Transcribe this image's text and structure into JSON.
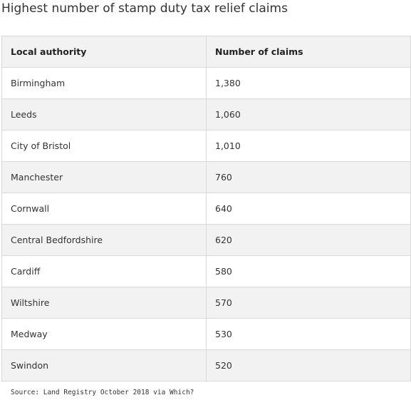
{
  "title": "Highest number of stamp duty tax relief claims",
  "table": {
    "headers": [
      "Local authority",
      "Number of claims"
    ],
    "rows": [
      {
        "authority": "Birmingham",
        "claims": "1,380"
      },
      {
        "authority": "Leeds",
        "claims": "1,060"
      },
      {
        "authority": "City of Bristol",
        "claims": "1,010"
      },
      {
        "authority": "Manchester",
        "claims": "760"
      },
      {
        "authority": "Cornwall",
        "claims": "640"
      },
      {
        "authority": "Central Bedfordshire",
        "claims": "620"
      },
      {
        "authority": "Cardiff",
        "claims": "580"
      },
      {
        "authority": "Wiltshire",
        "claims": "570"
      },
      {
        "authority": "Medway",
        "claims": "530"
      },
      {
        "authority": "Swindon",
        "claims": "520"
      }
    ]
  },
  "source": "Source: Land Registry October 2018 via Which?",
  "colors": {
    "header_bg": "#f2f2f2",
    "stripe_bg": "#f2f2f2",
    "border": "#d9d9d9",
    "text": "#333333"
  }
}
